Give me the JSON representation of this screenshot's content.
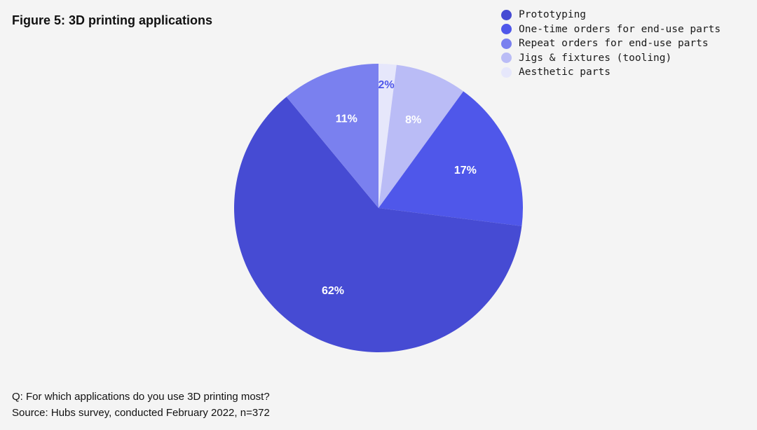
{
  "title": "Figure 5: 3D printing applications",
  "footnotes": {
    "question": "Q: For which applications do you use 3D printing most?",
    "source": "Source: Hubs survey, conducted February 2022, n=372"
  },
  "chart_data": {
    "type": "pie",
    "title": "Figure 5: 3D printing applications",
    "unit": "%",
    "legend_position": "top-right",
    "slices": [
      {
        "name": "Prototyping",
        "value": 62,
        "label": "62%",
        "color": "#464bd3",
        "label_color": "#ffffff"
      },
      {
        "name": "One-time orders for end-use parts",
        "value": 17,
        "label": "17%",
        "color": "#4f57ea",
        "label_color": "#ffffff"
      },
      {
        "name": "Repeat orders for end-use parts",
        "value": 11,
        "label": "11%",
        "color": "#7a80ef",
        "label_color": "#ffffff"
      },
      {
        "name": "Jigs & fixtures (tooling)",
        "value": 8,
        "label": "8%",
        "color": "#babcf6",
        "label_color": "#ffffff"
      },
      {
        "name": "Aesthetic parts",
        "value": 2,
        "label": "2%",
        "color": "#e6e7fb",
        "label_color": "#4f57ea"
      }
    ]
  }
}
